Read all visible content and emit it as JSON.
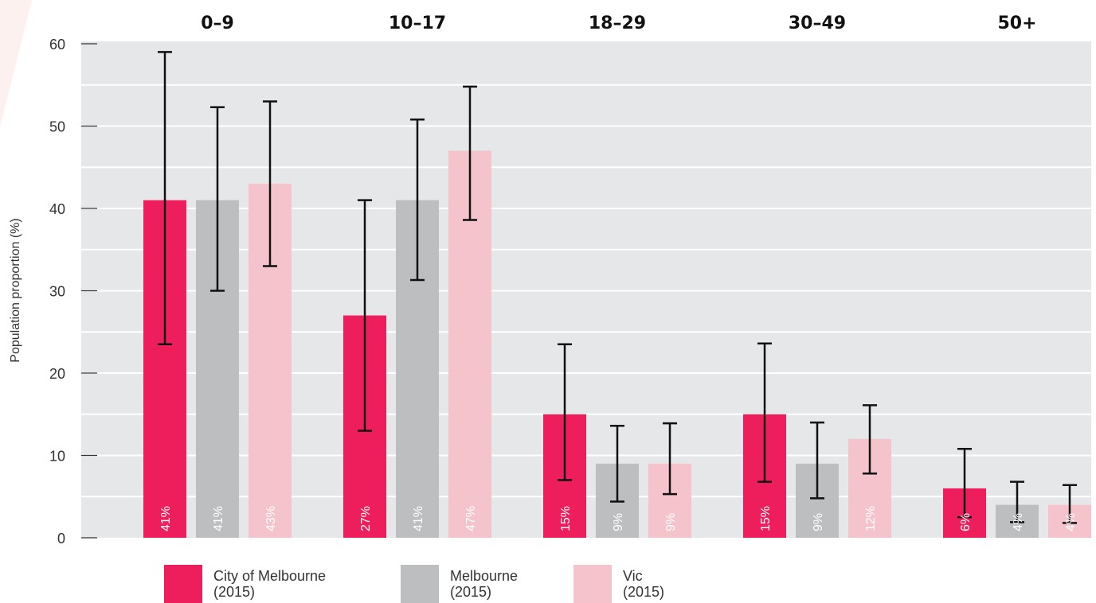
{
  "chart_data": {
    "type": "bar",
    "ylabel": "Population proportion (%)",
    "xlabel": "",
    "ylim": [
      0,
      60
    ],
    "yticks": [
      0,
      10,
      20,
      30,
      40,
      50,
      60
    ],
    "grid": true,
    "legend_placement": "bottom",
    "categories": [
      "0–9",
      "10–17",
      "18–29",
      "30–49",
      "50+"
    ],
    "series": [
      {
        "name": "City of Melbourne (2015)",
        "legend_lines": [
          "City of Melbourne",
          "(2015)"
        ],
        "color": "#ED1E5B",
        "values": [
          41,
          27,
          15,
          15,
          6
        ],
        "labels": [
          "41%",
          "27%",
          "15%",
          "15%",
          "6%"
        ],
        "error_low": [
          23.5,
          13,
          7,
          6.8,
          2.5
        ],
        "error_high": [
          59,
          41,
          23.5,
          23.6,
          10.8
        ]
      },
      {
        "name": "Melbourne (2015)",
        "legend_lines": [
          "Melbourne",
          "(2015)"
        ],
        "color": "#BCBEC0",
        "values": [
          41,
          41,
          9,
          9,
          4
        ],
        "labels": [
          "41%",
          "41%",
          "9%",
          "9%",
          "4%"
        ],
        "error_low": [
          30,
          31.3,
          4.4,
          4.8,
          1.9
        ],
        "error_high": [
          52.3,
          50.8,
          13.6,
          14,
          6.8
        ]
      },
      {
        "name": "Vic (2015)",
        "legend_lines": [
          "Vic",
          "(2015)"
        ],
        "color": "#F4C3CC",
        "values": [
          43,
          47,
          9,
          12,
          4
        ],
        "labels": [
          "43%",
          "47%",
          "9%",
          "12%",
          "4%"
        ],
        "error_low": [
          33,
          38.6,
          5.3,
          7.8,
          1.8
        ],
        "error_high": [
          53,
          54.8,
          13.9,
          16.1,
          6.4
        ]
      }
    ]
  },
  "colors": {
    "plot_background": "#E6E7E8",
    "gridline": "#FFFFFF",
    "axis_text": "#333333",
    "error_bar": "#111111",
    "bar_label": "#FFFFFF"
  }
}
